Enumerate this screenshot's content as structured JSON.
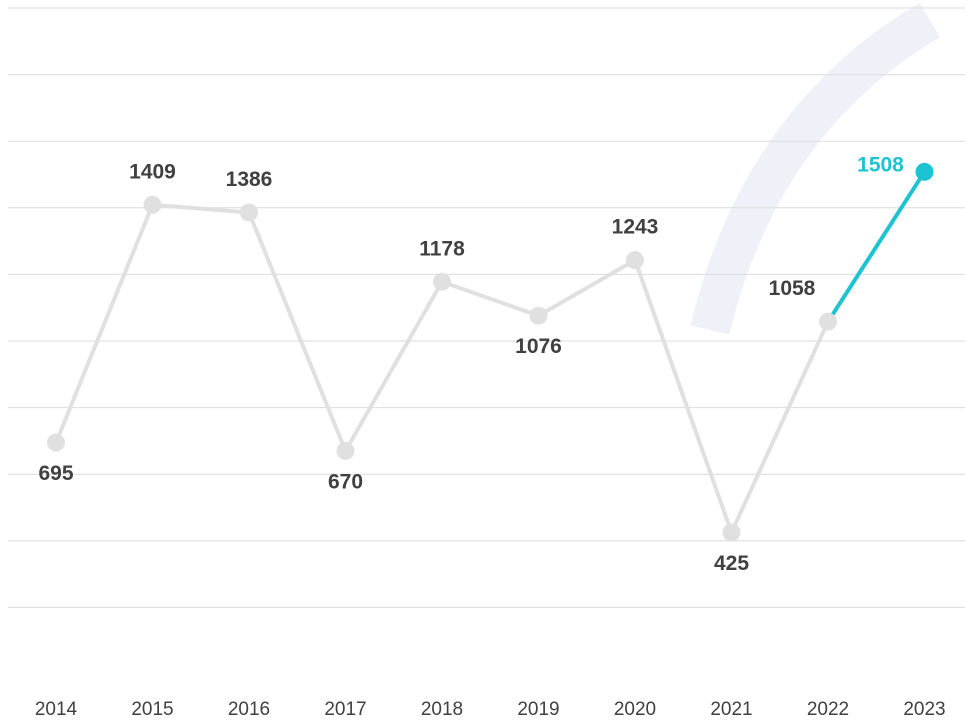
{
  "chart_data": {
    "type": "line",
    "categories": [
      "2014",
      "2015",
      "2016",
      "2017",
      "2018",
      "2019",
      "2020",
      "2021",
      "2022",
      "2023"
    ],
    "series": [
      {
        "color": "#e0e0e0",
        "highlight_color": "#1ec3d3",
        "values": [
          695,
          1409,
          1386,
          670,
          1178,
          1076,
          1243,
          425,
          1058,
          1508
        ]
      }
    ],
    "ylim": [
      0,
      2000
    ],
    "yticks": [
      200,
      400,
      600,
      800,
      1000,
      1200,
      1400,
      1600,
      1800,
      2000
    ],
    "grid": true
  }
}
